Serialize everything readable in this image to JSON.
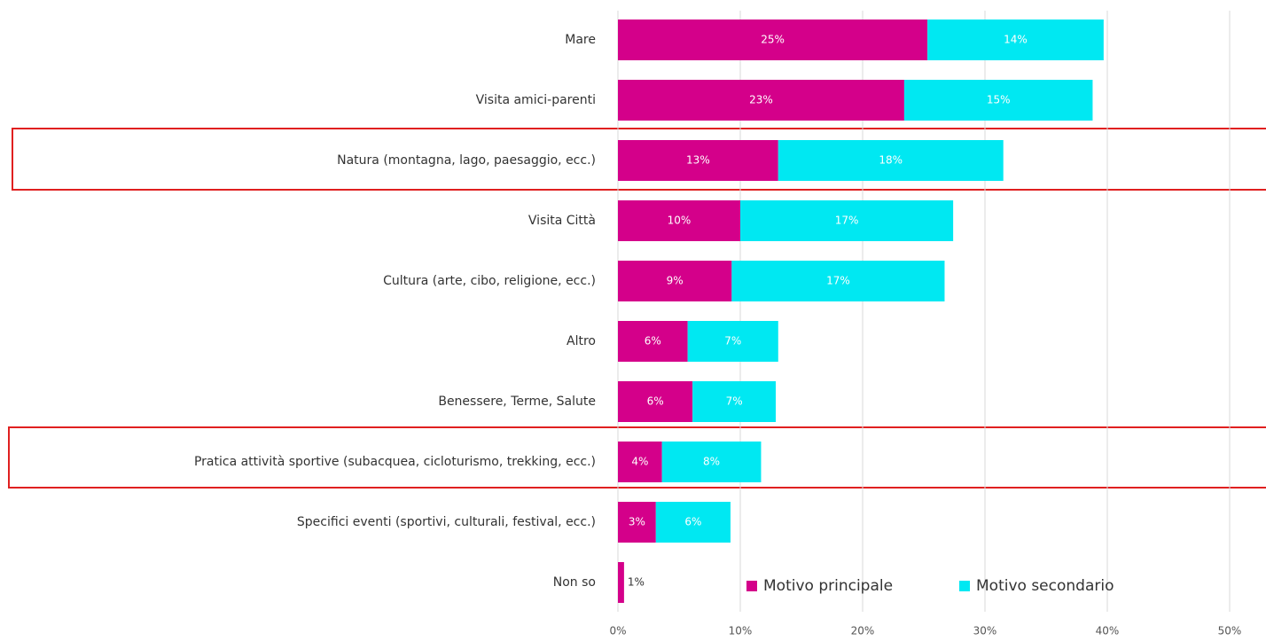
{
  "chart_data": {
    "type": "stacked_barh",
    "categories": [
      "Mare",
      "Visita amici-parenti",
      "Natura (montagna, lago, paesaggio, ecc.)",
      "Visita Città",
      "Cultura (arte, cibo, religione, ecc.)",
      "Altro",
      "Benessere, Terme, Salute",
      "Pratica attività sportive (subacquea, cicloturismo, trekking, ecc.)",
      "Specifici eventi (sportivi, culturali, festival, ecc.)",
      "Non so"
    ],
    "series": [
      {
        "name": "Motivo principale",
        "color": "#d4008a",
        "values": [
          25.3,
          23.4,
          13.1,
          10.0,
          9.3,
          5.7,
          6.1,
          3.6,
          3.1,
          0.5
        ],
        "value_labels": [
          "25%",
          "23%",
          "13%",
          "10%",
          "9%",
          "6%",
          "6%",
          "4%",
          "3%",
          "1%"
        ]
      },
      {
        "name": "Motivo secondario",
        "color": "#00e8f2",
        "values": [
          14.4,
          15.4,
          18.4,
          17.4,
          17.4,
          7.4,
          6.8,
          8.1,
          6.1,
          null
        ],
        "value_labels": [
          "14%",
          "15%",
          "18%",
          "17%",
          "17%",
          "7%",
          "7%",
          "8%",
          "6%",
          null
        ]
      }
    ],
    "xlim": [
      0,
      50
    ],
    "xticks": [
      {
        "value": 0,
        "label": "0%"
      },
      {
        "value": 10,
        "label": "10%"
      },
      {
        "value": 20,
        "label": "20%"
      },
      {
        "value": 30,
        "label": "30%"
      },
      {
        "value": 40,
        "label": "40%"
      },
      {
        "value": 50,
        "label": "50%"
      }
    ],
    "grid": true
  }
}
